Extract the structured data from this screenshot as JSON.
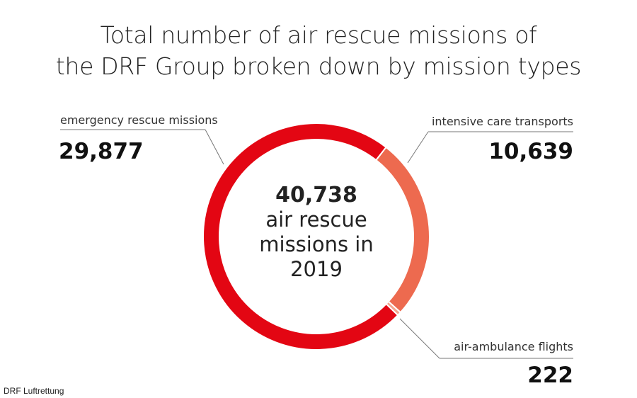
{
  "chart_data": {
    "type": "pie",
    "donut": true,
    "title": "Total number of air rescue missions of the DRF Group broken down by mission types",
    "title_lines": [
      "Total number of air rescue missions of",
      "the DRF Group broken down by mission types"
    ],
    "total": {
      "value": "40,738",
      "lines": [
        "air rescue",
        "missions in",
        "2019"
      ]
    },
    "slices": [
      {
        "label": "intensive care transports",
        "value": 10639,
        "display": "10,639",
        "color": "#ed6a4f"
      },
      {
        "label": "air-ambulance flights",
        "value": 222,
        "display": "222",
        "color": "#f4a58e"
      },
      {
        "label": "emergency rescue missions",
        "value": 29877,
        "display": "29,877",
        "color": "#e30613"
      }
    ]
  },
  "source": "DRF Luftrettung"
}
